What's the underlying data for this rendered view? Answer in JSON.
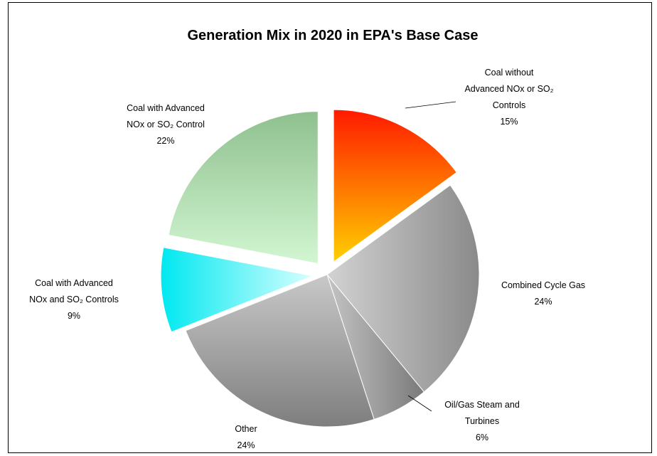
{
  "chart_data": {
    "type": "pie",
    "title": "Generation Mix in 2020 in EPA's Base Case",
    "slices": [
      {
        "label_lines": [
          "Coal without",
          "Advanced NOx or SO₂",
          "Controls"
        ],
        "value_label": "15%",
        "value": 15,
        "exploded": true,
        "color_top": "#ff1a00",
        "color_bottom": "#ffd000"
      },
      {
        "label_lines": [
          "Combined Cycle Gas"
        ],
        "value_label": "24%",
        "value": 24,
        "exploded": false,
        "color_top": "#d2d2d2",
        "color_bottom": "#8a8a8a"
      },
      {
        "label_lines": [
          "Oil/Gas Steam and",
          "Turbines"
        ],
        "value_label": "6%",
        "value": 6,
        "exploded": false,
        "color_top": "#c4c4c4",
        "color_bottom": "#7a7a7a"
      },
      {
        "label_lines": [
          "Other"
        ],
        "value_label": "24%",
        "value": 24,
        "exploded": false,
        "color_top": "#c8c8c8",
        "color_bottom": "#7e7e7e"
      },
      {
        "label_lines": [
          "Coal with Advanced",
          "NOx and SO₂ Controls"
        ],
        "value_label": "9%",
        "value": 9,
        "exploded": true,
        "color_top": "#00e8f0",
        "color_bottom": "#d8ffff"
      },
      {
        "label_lines": [
          "Coal with Advanced",
          "NOx or SO₂ Control"
        ],
        "value_label": "22%",
        "value": 22,
        "exploded": true,
        "color_top": "#8fc08f",
        "color_bottom": "#d2f6d2"
      }
    ]
  }
}
